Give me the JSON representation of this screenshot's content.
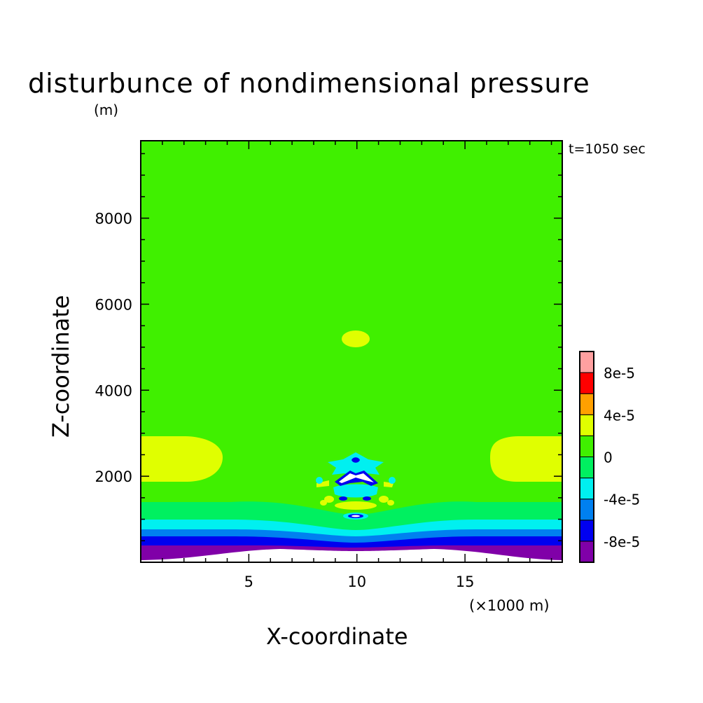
{
  "chart_data": {
    "type": "heatmap",
    "title": "disturbunce of nondimensional pressure",
    "unit_label": "(m)",
    "time_label": "t=1050 sec",
    "xlabel": "X-coordinate",
    "ylabel": "Z-coordinate",
    "x_unit": "(×1000 m)",
    "xlim": [
      0,
      19.5
    ],
    "ylim": [
      0,
      9800
    ],
    "xticks": [
      5,
      10,
      15
    ],
    "xtick_labels": [
      "5",
      "10",
      "15"
    ],
    "yticks": [
      2000,
      4000,
      6000,
      8000
    ],
    "ytick_labels": [
      "2000",
      "4000",
      "6000",
      "8000"
    ],
    "grid": false,
    "colorbar": {
      "levels": [
        {
          "lo": -0.0001,
          "hi": -8e-05,
          "color": "#8000a8"
        },
        {
          "lo": -8e-05,
          "hi": -6e-05,
          "color": "#0000f0"
        },
        {
          "lo": -6e-05,
          "hi": -4e-05,
          "color": "#0080f0"
        },
        {
          "lo": -4e-05,
          "hi": -2e-05,
          "color": "#00f0f0"
        },
        {
          "lo": -2e-05,
          "hi": 0,
          "color": "#00f060"
        },
        {
          "lo": 0,
          "hi": 2e-05,
          "color": "#40f000"
        },
        {
          "lo": 2e-05,
          "hi": 4e-05,
          "color": "#e0ff00"
        },
        {
          "lo": 4e-05,
          "hi": 6e-05,
          "color": "#ffa000"
        },
        {
          "lo": 6e-05,
          "hi": 8e-05,
          "color": "#ff0000"
        },
        {
          "lo": 8e-05,
          "hi": 0.0001,
          "color": "#ffa0a0"
        }
      ],
      "labels": [
        "8e-5",
        "4e-5",
        "0",
        "-4e-5",
        "-8e-5"
      ]
    },
    "features": [
      {
        "name": "surface purple layer",
        "z_top": 350,
        "value": "< -8e-5"
      },
      {
        "name": "blue layer",
        "z_range": [
          350,
          550
        ],
        "value": "-8e-5..-6e-5"
      },
      {
        "name": "light blue layer",
        "z_range": [
          550,
          750
        ],
        "value": "-6e-5..-4e-5"
      },
      {
        "name": "cyan layer",
        "z_range": [
          750,
          1000
        ],
        "value": "-4e-5..-2e-5"
      },
      {
        "name": "green layer",
        "z_range": [
          1000,
          1400
        ],
        "value": "-2e-5..0"
      },
      {
        "name": "left positive lobe",
        "x_range": [
          0,
          3.7
        ],
        "z_range": [
          1900,
          3000
        ],
        "value": "2e-5..4e-5"
      },
      {
        "name": "right positive lobe",
        "x_range": [
          16,
          19.5
        ],
        "z_range": [
          1900,
          3000
        ],
        "value": "2e-5..4e-5"
      },
      {
        "name": "upper small positive cell",
        "x": 10,
        "z": 5200,
        "value": "2e-5..4e-5"
      },
      {
        "name": "central disturbance",
        "x": 10,
        "z_range": [
          1100,
          2500
        ],
        "value": "mixed"
      }
    ],
    "colors": {
      "background_field": "#40f000",
      "axis": "#000000"
    }
  }
}
